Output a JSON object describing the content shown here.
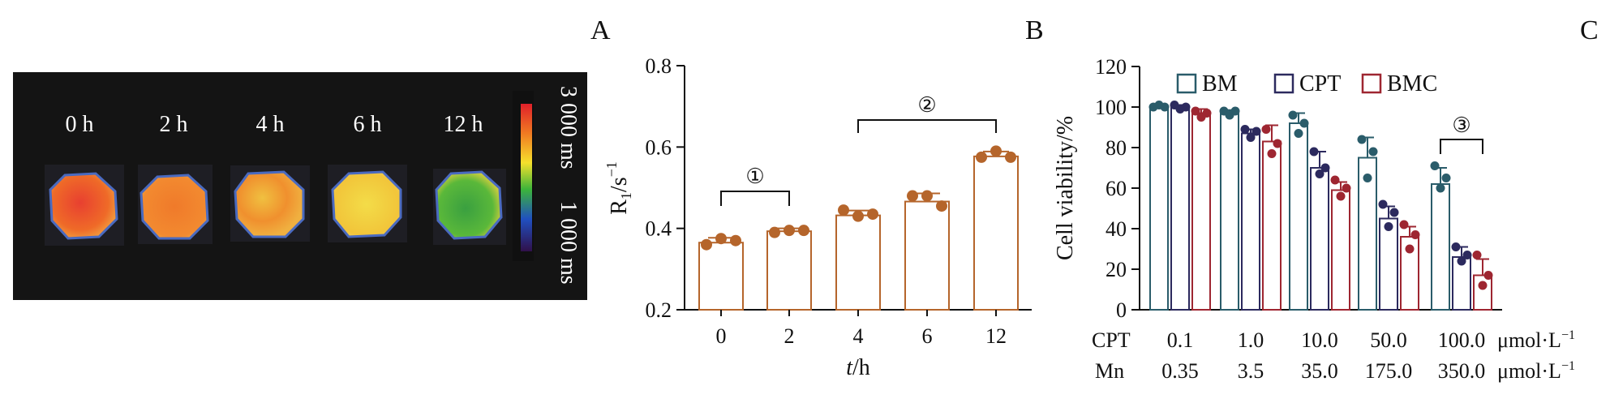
{
  "panels": [
    "A",
    "B",
    "C"
  ],
  "panel_a": {
    "time_labels": [
      "0 h",
      "2 h",
      "4 h",
      "6 h",
      "12 h"
    ],
    "colorbar_top": "3 000 ms",
    "colorbar_bottom": "1 000 ms",
    "sample_colors": [
      "#e8512c",
      "#ef7a28",
      "#f0a52e",
      "#f0d040",
      "#55b038"
    ]
  },
  "chart_data": [
    {
      "id": "B",
      "type": "bar",
      "categories": [
        "0",
        "2",
        "4",
        "6",
        "12"
      ],
      "values": [
        0.365,
        0.393,
        0.432,
        0.466,
        0.577
      ],
      "errors": [
        0.012,
        0.007,
        0.012,
        0.02,
        0.012
      ],
      "points": [
        [
          0.36,
          0.375,
          0.37
        ],
        [
          0.39,
          0.395,
          0.395
        ],
        [
          0.445,
          0.43,
          0.435
        ],
        [
          0.48,
          0.48,
          0.455
        ],
        [
          0.575,
          0.59,
          0.575
        ]
      ],
      "ylim": [
        0.2,
        0.8
      ],
      "yticks": [
        "0.2",
        "0.4",
        "0.6",
        "0.8"
      ],
      "ylabel_main": "R",
      "ylabel_sub": "1",
      "ylabel_rest": "/s",
      "ylabel_sup": "−1",
      "xlabel_italic": "t",
      "xlabel_rest": "/h",
      "color": "#b5652b",
      "brackets": [
        {
          "label": "①",
          "from": 0,
          "to": 1
        },
        {
          "label": "②",
          "from": 2,
          "to": 4
        }
      ]
    },
    {
      "id": "C",
      "type": "bar",
      "groups": 5,
      "ylim": [
        0,
        120
      ],
      "yticks": [
        "0",
        "20",
        "40",
        "60",
        "80",
        "100",
        "120"
      ],
      "ylabel": "Cell viability/%",
      "series": [
        {
          "name": "BM",
          "color": "#2a5c6a",
          "values": [
            100,
            97,
            92,
            75,
            62
          ],
          "errors": [
            1,
            1.5,
            5,
            10,
            8
          ],
          "points": [
            [
              100,
              100,
              101
            ],
            [
              98,
              98,
              96
            ],
            [
              96,
              92,
              87
            ],
            [
              84,
              78,
              65
            ],
            [
              71,
              65,
              60
            ]
          ]
        },
        {
          "name": "CPT",
          "color": "#2c2a5e",
          "values": [
            100,
            87,
            70,
            45,
            26
          ],
          "errors": [
            1,
            2,
            8,
            6,
            5
          ],
          "points": [
            [
              101,
              100,
              99
            ],
            [
              89,
              88,
              85
            ],
            [
              78,
              70,
              67
            ],
            [
              52,
              48,
              41
            ],
            [
              31,
              27,
              24
            ]
          ]
        },
        {
          "name": "BMC",
          "color": "#9e2631",
          "values": [
            97,
            83,
            59,
            36,
            17
          ],
          "errors": [
            2,
            8,
            4,
            5,
            8
          ],
          "points": [
            [
              98,
              97,
              95
            ],
            [
              89,
              82,
              77
            ],
            [
              64,
              60,
              56
            ],
            [
              42,
              37,
              30
            ],
            [
              27,
              17,
              12
            ]
          ]
        }
      ],
      "row1_label": "CPT",
      "row1_values": [
        "0.1",
        "1.0",
        "10.0",
        "50.0",
        "100.0"
      ],
      "row2_label": "Mn",
      "row2_values": [
        "0.35",
        "3.5",
        "35.0",
        "175.0",
        "350.0"
      ],
      "unit_main": "μmol·L",
      "unit_sup": "−1",
      "bracket": {
        "label": "③",
        "group": 4
      }
    }
  ]
}
